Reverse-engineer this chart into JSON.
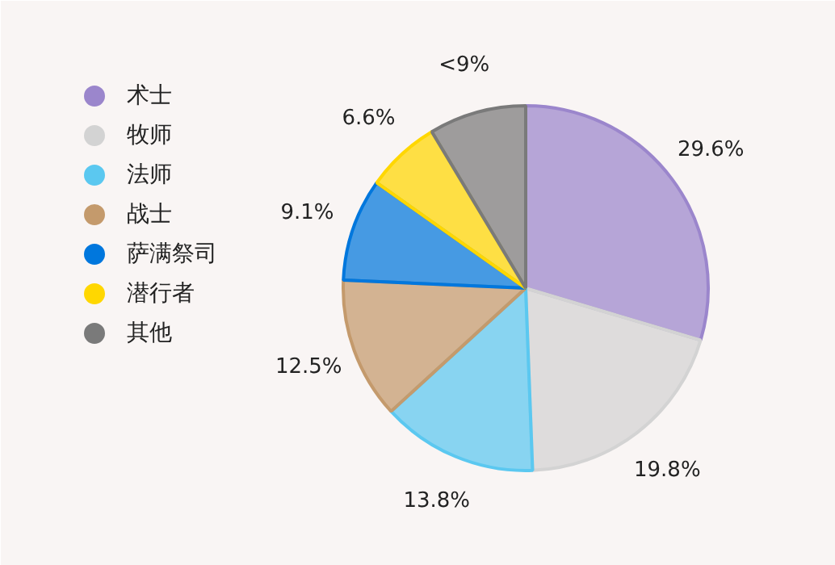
{
  "chart_data": {
    "type": "pie",
    "categories": [
      "术士",
      "牧师",
      "法师",
      "战士",
      "萨满祭司",
      "潜行者",
      "其他"
    ],
    "values": [
      29.6,
      19.8,
      13.8,
      12.5,
      9.1,
      6.6,
      8.6
    ],
    "value_labels": [
      "29.6%",
      "19.8%",
      "13.8%",
      "12.5%",
      "9.1%",
      "6.6%",
      "<9%"
    ],
    "colors": [
      "#9b86cc",
      "#d3d3d3",
      "#5bc8f0",
      "#c49a6c",
      "#0077dd",
      "#ffd700",
      "#7a7a7a"
    ],
    "legend": "left"
  }
}
